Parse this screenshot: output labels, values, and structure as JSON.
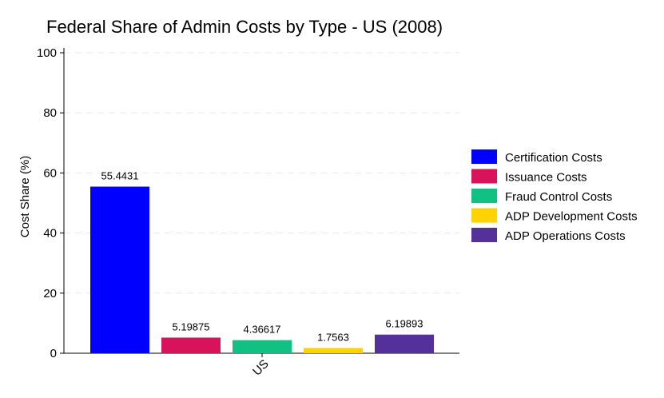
{
  "chart_data": {
    "type": "bar",
    "title": "Federal Share of Admin Costs by Type - US (2008)",
    "xlabel": "",
    "ylabel": "Cost Share (%)",
    "categories": [
      "US"
    ],
    "ylim": [
      0,
      100
    ],
    "yticks": [
      0,
      20,
      40,
      60,
      80,
      100
    ],
    "grid": true,
    "legend_position": "right",
    "series": [
      {
        "name": "Certification Costs",
        "values": [
          55.4431
        ],
        "label": "55.4431",
        "color": "#0000FF"
      },
      {
        "name": "Issuance Costs",
        "values": [
          5.19875
        ],
        "label": "5.19875",
        "color": "#D8125B"
      },
      {
        "name": "Fraud Control Costs",
        "values": [
          4.36617
        ],
        "label": "4.36617",
        "color": "#10C183"
      },
      {
        "name": "ADP Development Costs",
        "values": [
          1.7563
        ],
        "label": "1.7563",
        "color": "#FFD300"
      },
      {
        "name": "ADP Operations Costs",
        "values": [
          6.19893
        ],
        "label": "6.19893",
        "color": "#54309A"
      }
    ]
  }
}
